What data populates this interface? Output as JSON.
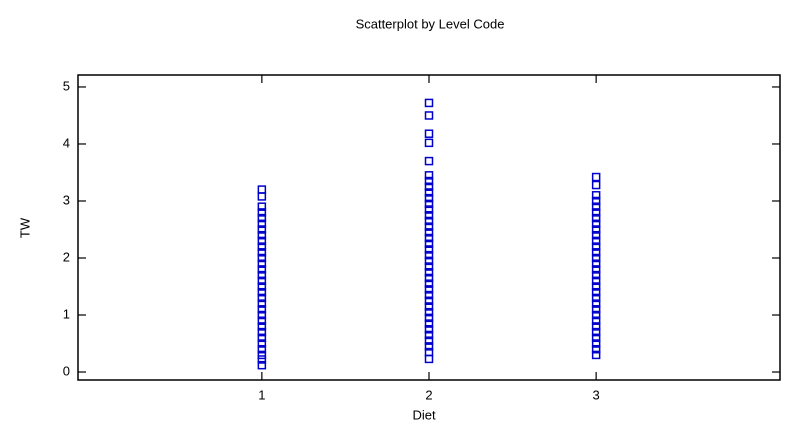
{
  "chart_data": {
    "type": "scatter",
    "title": "Scatterplot by Level Code",
    "x_label": "Diet",
    "y_label": "TW",
    "color": "#0000cc",
    "x": [
      1,
      1,
      1,
      1,
      1,
      1,
      1,
      1,
      1,
      1,
      1,
      1,
      1,
      1,
      1,
      1,
      1,
      1,
      1,
      1,
      1,
      1,
      1,
      1,
      1,
      1,
      1,
      1,
      1,
      1,
      1,
      2,
      2,
      2,
      2,
      2,
      2,
      2,
      2,
      2,
      2,
      2,
      2,
      2,
      2,
      2,
      2,
      2,
      2,
      2,
      2,
      2,
      2,
      2,
      2,
      2,
      2,
      2,
      2,
      2,
      2,
      2,
      2,
      2,
      2,
      2,
      2,
      2,
      2,
      3,
      3,
      3,
      3,
      3,
      3,
      3,
      3,
      3,
      3,
      3,
      3,
      3,
      3,
      3,
      3,
      3,
      3,
      3,
      3,
      3,
      3,
      3,
      3,
      3,
      3,
      3,
      3,
      3,
      3,
      3
    ],
    "values": [
      0.12,
      0.22,
      0.3,
      0.4,
      0.5,
      0.6,
      0.7,
      0.8,
      0.9,
      1.0,
      1.1,
      1.2,
      1.3,
      1.4,
      1.5,
      1.6,
      1.7,
      1.8,
      1.9,
      2.0,
      2.1,
      2.2,
      2.3,
      2.4,
      2.5,
      2.6,
      2.7,
      2.8,
      2.9,
      3.08,
      3.2,
      0.23,
      0.35,
      0.45,
      0.55,
      0.65,
      0.75,
      0.85,
      0.95,
      1.05,
      1.15,
      1.25,
      1.35,
      1.45,
      1.55,
      1.65,
      1.75,
      1.85,
      1.95,
      2.05,
      2.15,
      2.25,
      2.35,
      2.45,
      2.55,
      2.65,
      2.75,
      2.85,
      2.95,
      3.05,
      3.15,
      3.25,
      3.35,
      3.45,
      3.7,
      4.02,
      4.18,
      4.5,
      4.72,
      0.3,
      0.4,
      0.5,
      0.6,
      0.7,
      0.8,
      0.9,
      1.0,
      1.1,
      1.2,
      1.3,
      1.4,
      1.5,
      1.6,
      1.7,
      1.8,
      1.9,
      2.0,
      2.1,
      2.2,
      2.3,
      2.4,
      2.5,
      2.6,
      2.7,
      2.8,
      2.9,
      3.0,
      3.1,
      3.28,
      3.42
    ],
    "xlim": [
      -0.1,
      4.1
    ],
    "xticks": [
      1,
      2,
      3
    ],
    "ylim": [
      -0.14,
      5.21
    ],
    "yticks": [
      0,
      1,
      2,
      3,
      4,
      5
    ]
  }
}
